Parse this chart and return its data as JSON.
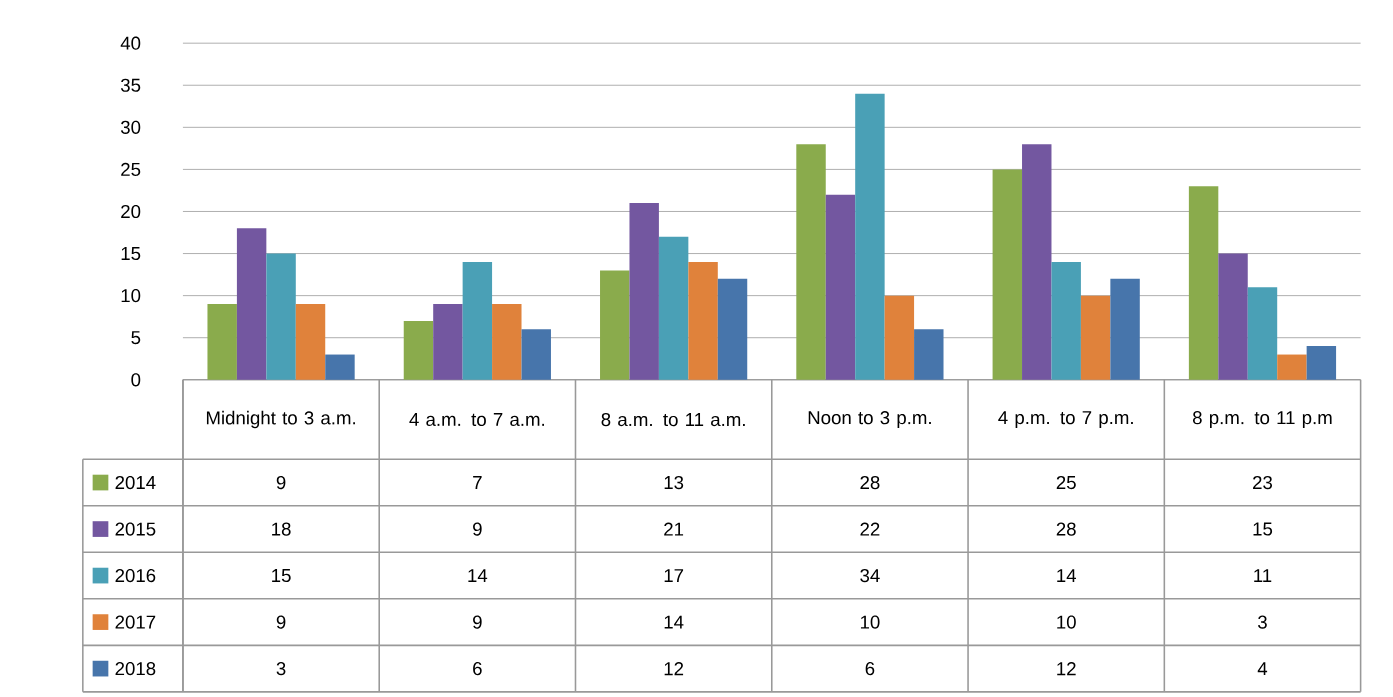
{
  "chart_data": {
    "type": "bar",
    "categories": [
      "Midnight to 3 a.m.",
      "4 a.m. to 7 a.m.",
      "8 a.m. to 11 a.m.",
      "Noon to 3 p.m.",
      "4 p.m. to 7 p.m.",
      "8 p.m. to 11 p.m"
    ],
    "series": [
      {
        "name": "2014",
        "color": "#8aab4c",
        "values": [
          9,
          7,
          13,
          28,
          25,
          23
        ]
      },
      {
        "name": "2015",
        "color": "#7357a0",
        "values": [
          18,
          9,
          21,
          22,
          28,
          15
        ]
      },
      {
        "name": "2016",
        "color": "#4aa0b6",
        "values": [
          15,
          14,
          17,
          34,
          14,
          11
        ]
      },
      {
        "name": "2017",
        "color": "#e0823b",
        "values": [
          9,
          9,
          14,
          10,
          10,
          3
        ]
      },
      {
        "name": "2018",
        "color": "#4775ab",
        "values": [
          3,
          6,
          12,
          6,
          12,
          4
        ]
      }
    ],
    "ylim": [
      0,
      40
    ],
    "yticks": [
      0,
      5,
      10,
      15,
      20,
      25,
      30,
      35,
      40
    ],
    "grid": "y",
    "legend": "bottom left",
    "data_labels": true
  }
}
